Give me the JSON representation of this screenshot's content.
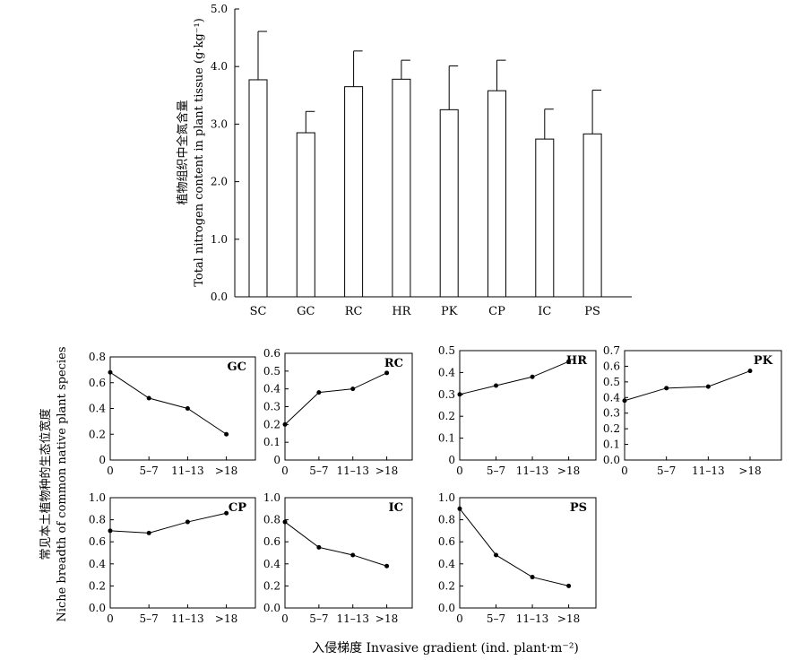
{
  "bar_chart": {
    "y_label_cn": "植物组织中全氮含量",
    "y_label_en": "Total nitrogen content in plant tissue (g·kg⁻¹)"
  },
  "niche": {
    "y_label_cn": "常见本土植物种的生态位宽度",
    "y_label_en": "Niche breadth of common native plant species",
    "x_label": "入侵梯度 Invasive gradient (ind. plant·m⁻²)"
  },
  "chart_data": [
    {
      "type": "bar",
      "categories": [
        "SC",
        "GC",
        "RC",
        "HR",
        "PK",
        "CP",
        "IC",
        "PS"
      ],
      "values": [
        3.77,
        2.85,
        3.65,
        3.78,
        3.25,
        3.58,
        2.74,
        2.83
      ],
      "errors": [
        0.84,
        0.37,
        0.62,
        0.33,
        0.76,
        0.53,
        0.52,
        0.76
      ],
      "ylim": [
        0,
        5
      ],
      "yticks": [
        "0.0",
        "1.0",
        "2.0",
        "3.0",
        "4.0",
        "5.0"
      ],
      "grid": false
    },
    {
      "type": "line",
      "title": "GC",
      "x": [
        "0",
        "5–7",
        "11–13",
        ">18"
      ],
      "values": [
        0.68,
        0.48,
        0.4,
        0.2
      ],
      "ylim": [
        0,
        0.8
      ],
      "yticks": [
        "0",
        "0.2",
        "0.4",
        "0.6",
        "0.8"
      ],
      "grid": false
    },
    {
      "type": "line",
      "title": "RC",
      "x": [
        "0",
        "5–7",
        "11–13",
        ">18"
      ],
      "values": [
        0.2,
        0.38,
        0.4,
        0.49
      ],
      "ylim": [
        0,
        0.6
      ],
      "yticks": [
        "0",
        "0.1",
        "0.2",
        "0.3",
        "0.4",
        "0.5",
        "0.6"
      ],
      "grid": false
    },
    {
      "type": "line",
      "title": "HR",
      "x": [
        "0",
        "5–7",
        "11–13",
        ">18"
      ],
      "values": [
        0.3,
        0.34,
        0.38,
        0.45
      ],
      "ylim": [
        0,
        0.5
      ],
      "yticks": [
        "0",
        "0.1",
        "0.2",
        "0.3",
        "0.4",
        "0.5"
      ],
      "grid": false
    },
    {
      "type": "line",
      "title": "PK",
      "x": [
        "0",
        "5–7",
        "11–13",
        ">18"
      ],
      "values": [
        0.38,
        0.46,
        0.47,
        0.57
      ],
      "ylim": [
        0,
        0.7
      ],
      "yticks": [
        "0.0",
        "0.1",
        "0.2",
        "0.3",
        "0.4",
        "0.5",
        "0.6",
        "0.7"
      ],
      "grid": false
    },
    {
      "type": "line",
      "title": "CP",
      "x": [
        "0",
        "5–7",
        "11–13",
        ">18"
      ],
      "values": [
        0.7,
        0.68,
        0.78,
        0.86
      ],
      "ylim": [
        0,
        1
      ],
      "yticks": [
        "0.0",
        "0.2",
        "0.4",
        "0.6",
        "0.8",
        "1.0"
      ],
      "grid": false
    },
    {
      "type": "line",
      "title": "IC",
      "x": [
        "0",
        "5–7",
        "11–13",
        ">18"
      ],
      "values": [
        0.78,
        0.55,
        0.48,
        0.38
      ],
      "ylim": [
        0,
        1
      ],
      "yticks": [
        "0.0",
        "0.2",
        "0.4",
        "0.6",
        "0.8",
        "1.0"
      ],
      "grid": false
    },
    {
      "type": "line",
      "title": "PS",
      "x": [
        "0",
        "5–7",
        "11–13",
        ">18"
      ],
      "values": [
        0.9,
        0.48,
        0.28,
        0.2
      ],
      "ylim": [
        0,
        1
      ],
      "yticks": [
        "0.0",
        "0.2",
        "0.4",
        "0.6",
        "0.8",
        "1.0"
      ],
      "grid": false
    }
  ]
}
